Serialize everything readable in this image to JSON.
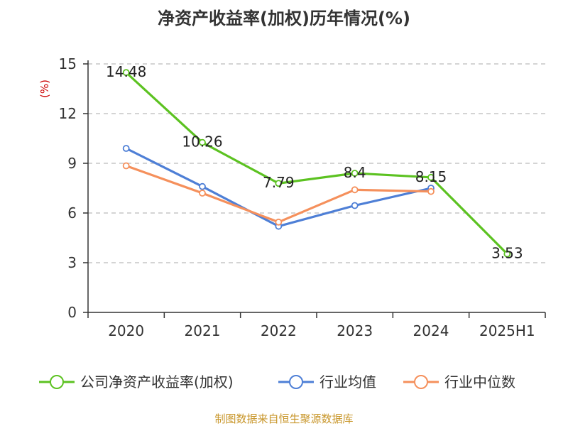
{
  "chart_data": {
    "type": "line",
    "title": "净资产收益率(加权)历年情况(%)",
    "ylabel": "(%)",
    "ylim": [
      0,
      15
    ],
    "yticks": [
      0,
      3,
      6,
      9,
      12,
      15
    ],
    "categories": [
      "2020",
      "2021",
      "2022",
      "2023",
      "2024",
      "2025H1"
    ],
    "grid": "horizontal dashed",
    "legend_position": "bottom",
    "series": [
      {
        "name": "公司净资产收益率(加权)",
        "color": "#5cc221",
        "values": [
          14.48,
          10.26,
          7.79,
          8.4,
          8.15,
          3.53
        ],
        "labels": [
          "14.48",
          "10.26",
          "7.79",
          "8.4",
          "8.15",
          "3.53"
        ]
      },
      {
        "name": "行业均值",
        "color": "#4e7fd6",
        "values": [
          9.9,
          7.6,
          5.2,
          6.45,
          7.5,
          null
        ]
      },
      {
        "name": "行业中位数",
        "color": "#f5905c",
        "values": [
          8.85,
          7.2,
          5.45,
          7.4,
          7.3,
          null
        ]
      }
    ]
  },
  "colors": {
    "unit_label": "#cc0000",
    "source": "#c8962a",
    "axis": "#333333",
    "grid": "#bbbbbb"
  },
  "source": "制图数据来自恒生聚源数据库"
}
